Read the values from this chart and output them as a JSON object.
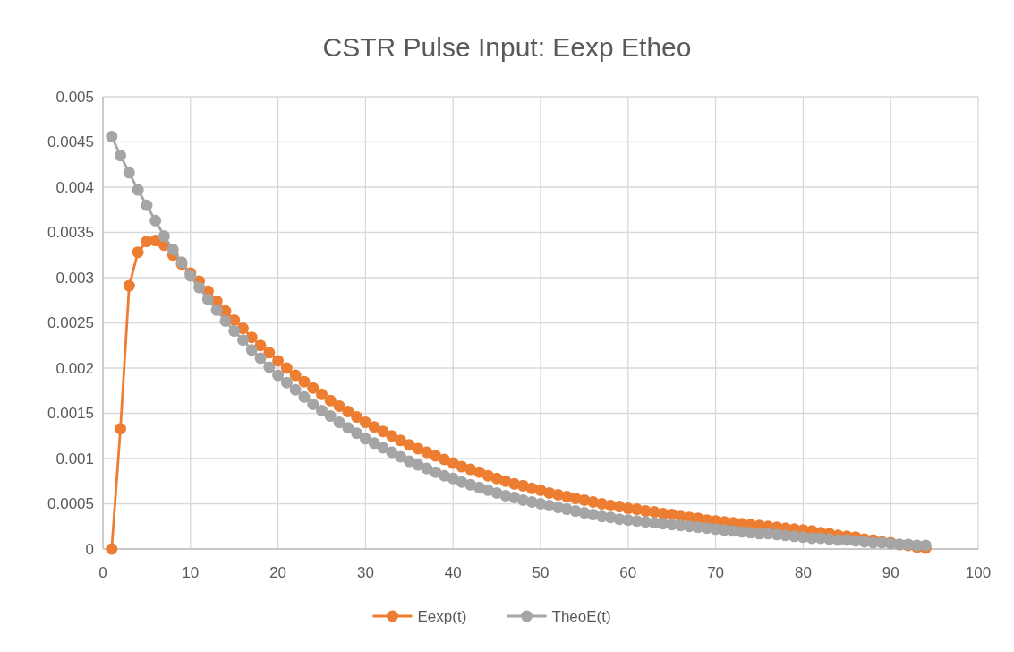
{
  "chart_data": {
    "type": "line",
    "title": "CSTR Pulse Input: Eexp Etheo",
    "x": [
      1,
      2,
      3,
      4,
      5,
      6,
      7,
      8,
      9,
      10,
      11,
      12,
      13,
      14,
      15,
      16,
      17,
      18,
      19,
      20,
      21,
      22,
      23,
      24,
      25,
      26,
      27,
      28,
      29,
      30,
      31,
      32,
      33,
      34,
      35,
      36,
      37,
      38,
      39,
      40,
      41,
      42,
      43,
      44,
      45,
      46,
      47,
      48,
      49,
      50,
      51,
      52,
      53,
      54,
      55,
      56,
      57,
      58,
      59,
      60,
      61,
      62,
      63,
      64,
      65,
      66,
      67,
      68,
      69,
      70,
      71,
      72,
      73,
      74,
      75,
      76,
      77,
      78,
      79,
      80,
      81,
      82,
      83,
      84,
      85,
      86,
      87,
      88,
      89,
      90,
      91,
      92,
      93,
      94
    ],
    "series": [
      {
        "name": "Eexp(t)",
        "color": "#ed7d31",
        "values": [
          0,
          0.00133,
          0.00291,
          0.00328,
          0.0034,
          0.00341,
          0.00336,
          0.00325,
          0.00315,
          0.00305,
          0.00296,
          0.00285,
          0.00274,
          0.00263,
          0.00253,
          0.00244,
          0.00234,
          0.00225,
          0.00217,
          0.00208,
          0.002,
          0.00192,
          0.00185,
          0.00178,
          0.00171,
          0.00164,
          0.00158,
          0.00152,
          0.00146,
          0.0014,
          0.00135,
          0.0013,
          0.00125,
          0.0012,
          0.00115,
          0.00111,
          0.00107,
          0.00103,
          0.00099,
          0.00095,
          0.00091,
          0.00088,
          0.00085,
          0.00081,
          0.00078,
          0.00075,
          0.00072,
          0.0007,
          0.00067,
          0.00065,
          0.00062,
          0.0006,
          0.00058,
          0.00056,
          0.00054,
          0.00052,
          0.0005,
          0.00048,
          0.00047,
          0.00045,
          0.00044,
          0.00042,
          0.00041,
          0.00039,
          0.00038,
          0.00036,
          0.00035,
          0.00034,
          0.00032,
          0.00031,
          0.0003,
          0.00029,
          0.00028,
          0.00027,
          0.00026,
          0.00025,
          0.00024,
          0.00023,
          0.00022,
          0.00021,
          0.0002,
          0.00018,
          0.00017,
          0.00015,
          0.00014,
          0.00013,
          0.00011,
          0.0001,
          8e-05,
          7e-05,
          5e-05,
          4e-05,
          2e-05,
          1e-05
        ]
      },
      {
        "name": "TheoE(t)",
        "color": "#a5a5a5",
        "values": [
          0.00456,
          0.00435,
          0.00416,
          0.00397,
          0.0038,
          0.00363,
          0.00346,
          0.00331,
          0.00317,
          0.00302,
          0.00289,
          0.00276,
          0.00264,
          0.00252,
          0.00241,
          0.00231,
          0.0022,
          0.00211,
          0.00201,
          0.00192,
          0.00184,
          0.00176,
          0.00168,
          0.0016,
          0.00153,
          0.00147,
          0.0014,
          0.00134,
          0.00128,
          0.00122,
          0.00117,
          0.00112,
          0.00107,
          0.00102,
          0.00097,
          0.00093,
          0.00089,
          0.00085,
          0.00081,
          0.00078,
          0.00074,
          0.00071,
          0.00068,
          0.00065,
          0.00062,
          0.00059,
          0.00057,
          0.00054,
          0.00052,
          0.0005,
          0.00048,
          0.00046,
          0.00044,
          0.00042,
          0.0004,
          0.00038,
          0.00036,
          0.00035,
          0.00033,
          0.00032,
          0.00031,
          0.0003,
          0.00029,
          0.00028,
          0.00027,
          0.00026,
          0.00025,
          0.00024,
          0.00023,
          0.00022,
          0.00021,
          0.0002,
          0.00019,
          0.00018,
          0.00017,
          0.00017,
          0.00016,
          0.00015,
          0.00014,
          0.00013,
          0.00012,
          0.00012,
          0.00011,
          0.0001,
          0.0001,
          9e-05,
          8e-05,
          7e-05,
          7e-05,
          6e-05,
          5e-05,
          5e-05,
          4e-05,
          4e-05
        ]
      }
    ],
    "xlim": [
      0,
      100
    ],
    "xticks": [
      0,
      10,
      20,
      30,
      40,
      50,
      60,
      70,
      80,
      90,
      100
    ],
    "ylim": [
      0,
      0.005
    ],
    "yticks": [
      0,
      0.0005,
      0.001,
      0.0015,
      0.002,
      0.0025,
      0.003,
      0.0035,
      0.004,
      0.0045,
      0.005
    ],
    "grid": true,
    "legend": "bottom",
    "marker": "circle",
    "line_style": "solid"
  }
}
